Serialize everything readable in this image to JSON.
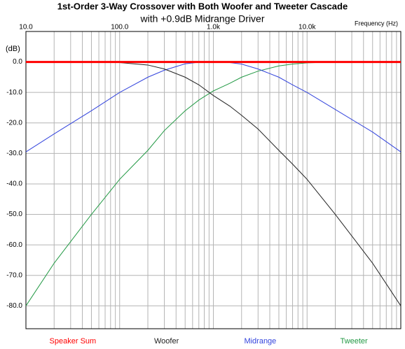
{
  "chart_data": {
    "type": "line",
    "title": "1st-Order 3-Way Crossover with Both Woofer and Tweeter Cascade",
    "subtitle": "with +0.9dB Midrange Driver",
    "y_label": "(dB)",
    "x_label": "Frequency (Hz)",
    "log_x": true,
    "grid": true,
    "legend": "bottom",
    "xlim": [
      10,
      100000
    ],
    "xticks": [
      {
        "value": 10,
        "label": "10.0"
      },
      {
        "value": 100,
        "label": "100.0"
      },
      {
        "value": 1000,
        "label": "1.0k"
      },
      {
        "value": 10000,
        "label": "10.0k"
      }
    ],
    "xminorticks": [
      20,
      30,
      40,
      50,
      60,
      70,
      80,
      90,
      200,
      300,
      400,
      500,
      600,
      700,
      800,
      900,
      2000,
      3000,
      4000,
      5000,
      6000,
      7000,
      8000,
      9000,
      20000,
      30000,
      40000,
      50000,
      60000,
      70000,
      80000,
      90000
    ],
    "ylim": [
      -87.5,
      10
    ],
    "yticks": [
      {
        "value": 0,
        "label": "0.0"
      },
      {
        "value": -10,
        "label": "-10.0"
      },
      {
        "value": -20,
        "label": "-20.0"
      },
      {
        "value": -30,
        "label": "-30.0"
      },
      {
        "value": -40,
        "label": "-40.0"
      },
      {
        "value": -50,
        "label": "-50.0"
      },
      {
        "value": -60,
        "label": "-60.0"
      },
      {
        "value": -70,
        "label": "-70.0"
      },
      {
        "value": -80,
        "label": "-80.0"
      }
    ],
    "x": [
      10,
      20,
      50,
      100,
      200,
      300,
      500,
      700,
      1000,
      1500,
      2000,
      3000,
      5000,
      7000,
      10000,
      20000,
      50000,
      100000
    ],
    "series": [
      {
        "name": "Speaker Sum",
        "color": "#ff0000",
        "width": 3,
        "values": [
          0,
          0,
          0,
          0,
          0,
          0,
          0,
          0,
          0,
          0,
          0,
          0,
          0,
          0,
          0,
          0,
          0,
          0
        ]
      },
      {
        "name": "Woofer",
        "color": "#222222",
        "width": 1,
        "values": [
          0,
          0,
          0,
          -0.2,
          -1,
          -2.3,
          -5,
          -7.5,
          -11,
          -14.5,
          -17.5,
          -22,
          -29,
          -33.5,
          -38.5,
          -50,
          -66,
          -80
        ]
      },
      {
        "name": "Midrange",
        "color": "#3344dd",
        "width": 1,
        "values": [
          -29.5,
          -23.6,
          -16,
          -10,
          -5,
          -2.7,
          -0.6,
          -0.1,
          0,
          -0.2,
          -0.7,
          -2.3,
          -5,
          -7.5,
          -10,
          -15.6,
          -23,
          -29.5
        ]
      },
      {
        "name": "Tweeter",
        "color": "#229944",
        "width": 1,
        "values": [
          -80,
          -66,
          -50,
          -38.5,
          -29,
          -22.5,
          -16,
          -12.5,
          -9.5,
          -7,
          -5,
          -3,
          -1.3,
          -0.7,
          -0.3,
          0,
          0,
          0
        ]
      }
    ]
  }
}
